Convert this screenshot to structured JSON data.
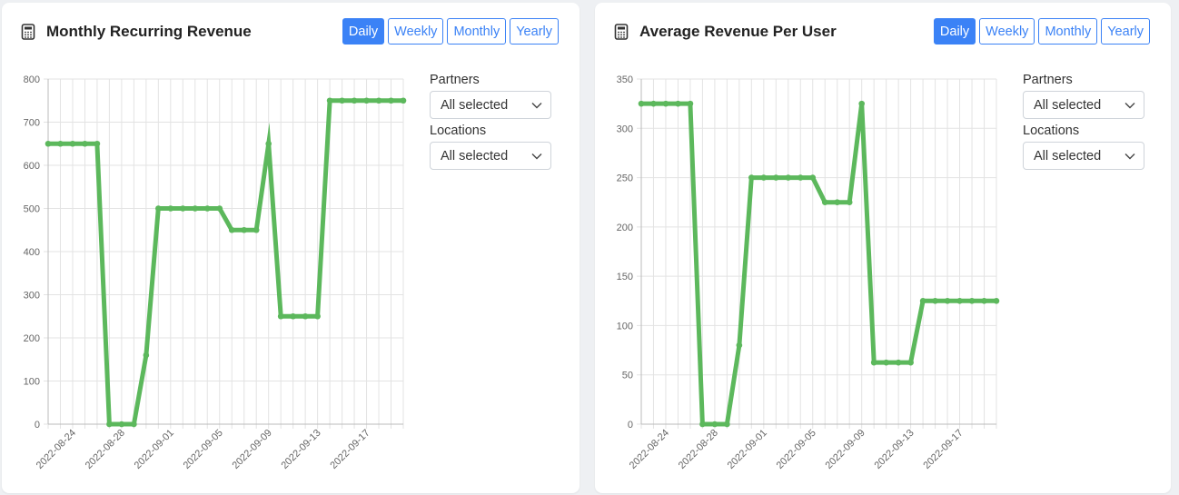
{
  "chart_data": [
    {
      "type": "line",
      "title": "Monthly Recurring Revenue",
      "color": "#5cb85c",
      "x": [
        "2022-08-22",
        "2022-08-23",
        "2022-08-24",
        "2022-08-25",
        "2022-08-26",
        "2022-08-27",
        "2022-08-28",
        "2022-08-29",
        "2022-08-30",
        "2022-08-31",
        "2022-09-01",
        "2022-09-02",
        "2022-09-03",
        "2022-09-04",
        "2022-09-05",
        "2022-09-06",
        "2022-09-07",
        "2022-09-08",
        "2022-09-09",
        "2022-09-10",
        "2022-09-11",
        "2022-09-12",
        "2022-09-13",
        "2022-09-14",
        "2022-09-15",
        "2022-09-16",
        "2022-09-17",
        "2022-09-18",
        "2022-09-19",
        "2022-09-20"
      ],
      "values": [
        650,
        650,
        650,
        650,
        650,
        0,
        0,
        0,
        160,
        500,
        500,
        500,
        500,
        500,
        500,
        450,
        450,
        450,
        650,
        250,
        250,
        250,
        250,
        750,
        750,
        750,
        750,
        750,
        750,
        750
      ],
      "x_tick_labels": [
        "2022-08-24",
        "2022-08-28",
        "2022-09-01",
        "2022-09-05",
        "2022-09-09",
        "2022-09-13",
        "2022-09-17"
      ],
      "y_ticks": [
        0,
        100,
        200,
        300,
        400,
        500,
        600,
        700,
        800
      ],
      "ylim": [
        0,
        800
      ],
      "grid": true,
      "xlabel": "",
      "ylabel": ""
    },
    {
      "type": "line",
      "title": "Average Revenue Per User",
      "color": "#5cb85c",
      "x": [
        "2022-08-22",
        "2022-08-23",
        "2022-08-24",
        "2022-08-25",
        "2022-08-26",
        "2022-08-27",
        "2022-08-28",
        "2022-08-29",
        "2022-08-30",
        "2022-08-31",
        "2022-09-01",
        "2022-09-02",
        "2022-09-03",
        "2022-09-04",
        "2022-09-05",
        "2022-09-06",
        "2022-09-07",
        "2022-09-08",
        "2022-09-09",
        "2022-09-10",
        "2022-09-11",
        "2022-09-12",
        "2022-09-13",
        "2022-09-14",
        "2022-09-15",
        "2022-09-16",
        "2022-09-17",
        "2022-09-18",
        "2022-09-19",
        "2022-09-20"
      ],
      "values": [
        325,
        325,
        325,
        325,
        325,
        0,
        0,
        0,
        80,
        250,
        250,
        250,
        250,
        250,
        250,
        225,
        225,
        225,
        325,
        62.5,
        62.5,
        62.5,
        62.5,
        125,
        125,
        125,
        125,
        125,
        125,
        125
      ],
      "x_tick_labels": [
        "2022-08-24",
        "2022-08-28",
        "2022-09-01",
        "2022-09-05",
        "2022-09-09",
        "2022-09-13",
        "2022-09-17"
      ],
      "y_ticks": [
        0,
        50,
        100,
        150,
        200,
        250,
        300,
        350
      ],
      "ylim": [
        0,
        350
      ],
      "grid": true,
      "xlabel": "",
      "ylabel": ""
    }
  ],
  "cards": [
    {
      "title": "Monthly Recurring Revenue",
      "buttons": [
        "Daily",
        "Weekly",
        "Monthly",
        "Yearly"
      ],
      "active_button": "Daily",
      "filters": [
        {
          "label": "Partners",
          "value": "All selected"
        },
        {
          "label": "Locations",
          "value": "All selected"
        }
      ]
    },
    {
      "title": "Average Revenue Per User",
      "buttons": [
        "Daily",
        "Weekly",
        "Monthly",
        "Yearly"
      ],
      "active_button": "Daily",
      "filters": [
        {
          "label": "Partners",
          "value": "All selected"
        },
        {
          "label": "Locations",
          "value": "All selected"
        }
      ]
    }
  ],
  "icons": {
    "title_icon": "calculator-icon",
    "select_icon": "chevron-down-icon"
  },
  "colors": {
    "accent": "#3b82f6",
    "line": "#5cb85c",
    "grid": "#e3e3e3"
  }
}
